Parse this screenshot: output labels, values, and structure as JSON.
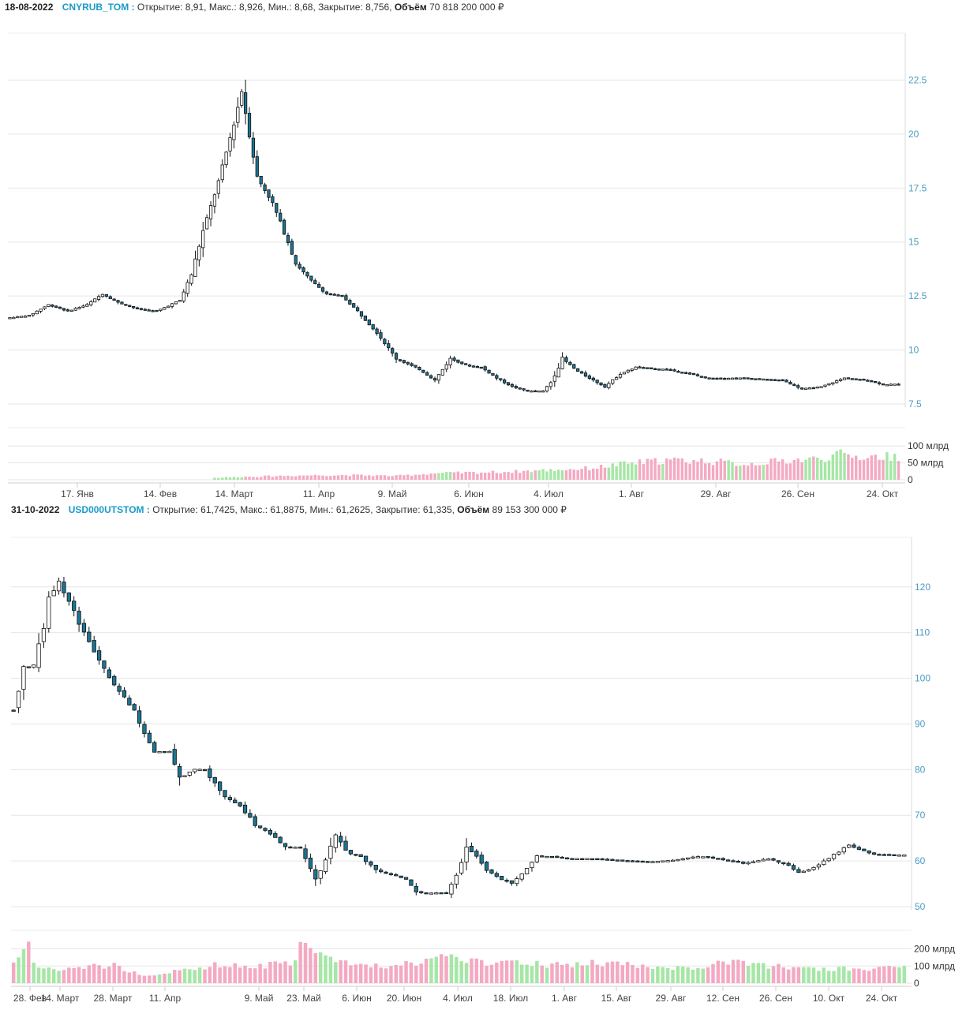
{
  "chart_data": [
    {
      "type": "candlestick",
      "ticker": "CNYRUB_TOM",
      "header": {
        "date": "18-08-2022",
        "ticker_label": "CNYRUB_TOM :",
        "open_label": "Открытие:",
        "open": "8,91",
        "high_label": "Макс.:",
        "high": "8,926",
        "low_label": "Мин.:",
        "low": "8,68",
        "close_label": "Закрытие:",
        "close": "8,756",
        "volume_label": "Объём",
        "volume": "70 818 200 000 ₽"
      },
      "y_ticks": [
        "7.5",
        "10",
        "12.5",
        "15",
        "17.5",
        "20",
        "22.5"
      ],
      "ylim": [
        7.5,
        24.6
      ],
      "volume_ticks": [
        "0",
        "50 млрд",
        "100 млрд"
      ],
      "volume_max": 150,
      "x_ticks": [
        "17. Янв",
        "14. Фев",
        "14. Март",
        "11. Апр",
        "9. Май",
        "6. Июн",
        "4. Июл",
        "1. Авг",
        "29. Авг",
        "26. Сен",
        "24. Окт"
      ],
      "key_points": [
        [
          0,
          11.5
        ],
        [
          5,
          11.6
        ],
        [
          10,
          12.1
        ],
        [
          15,
          11.8
        ],
        [
          20,
          12.1
        ],
        [
          24,
          12.6
        ],
        [
          28,
          12.2
        ],
        [
          33,
          11.9
        ],
        [
          38,
          11.8
        ],
        [
          44,
          12.3
        ],
        [
          47,
          13.5
        ],
        [
          50,
          15.5
        ],
        [
          54,
          17.8
        ],
        [
          58,
          20.5
        ],
        [
          60,
          22.0
        ],
        [
          64,
          18.0
        ],
        [
          68,
          16.8
        ],
        [
          72,
          15.0
        ],
        [
          74,
          14.0
        ],
        [
          78,
          13.2
        ],
        [
          82,
          12.6
        ],
        [
          86,
          12.5
        ],
        [
          90,
          11.8
        ],
        [
          95,
          10.8
        ],
        [
          100,
          9.6
        ],
        [
          106,
          9.1
        ],
        [
          110,
          8.6
        ],
        [
          114,
          9.6
        ],
        [
          118,
          9.3
        ],
        [
          122,
          9.2
        ],
        [
          126,
          8.7
        ],
        [
          130,
          8.3
        ],
        [
          134,
          8.1
        ],
        [
          138,
          8.1
        ],
        [
          140,
          8.5
        ],
        [
          143,
          9.6
        ],
        [
          147,
          9.0
        ],
        [
          151,
          8.6
        ],
        [
          154,
          8.3
        ],
        [
          158,
          8.9
        ],
        [
          162,
          9.2
        ],
        [
          170,
          9.1
        ],
        [
          176,
          8.9
        ],
        [
          180,
          8.7
        ],
        [
          190,
          8.7
        ],
        [
          200,
          8.6
        ],
        [
          205,
          8.2
        ],
        [
          210,
          8.3
        ],
        [
          216,
          8.7
        ],
        [
          222,
          8.6
        ],
        [
          226,
          8.4
        ],
        [
          230,
          8.42
        ]
      ],
      "volume_points": [
        [
          0,
          0
        ],
        [
          52,
          0
        ],
        [
          53,
          6
        ],
        [
          60,
          9
        ],
        [
          70,
          12
        ],
        [
          80,
          14
        ],
        [
          90,
          14
        ],
        [
          100,
          12
        ],
        [
          110,
          20
        ],
        [
          120,
          22
        ],
        [
          130,
          25
        ],
        [
          140,
          30
        ],
        [
          150,
          35
        ],
        [
          160,
          50
        ],
        [
          170,
          60
        ],
        [
          180,
          58
        ],
        [
          190,
          48
        ],
        [
          200,
          58
        ],
        [
          210,
          65
        ],
        [
          215,
          78
        ],
        [
          220,
          70
        ],
        [
          230,
          72
        ]
      ],
      "colors": {
        "up": "#ffffff",
        "down": "#1c7494",
        "vol_up": "#a6e6a6",
        "vol_down": "#f4a9c3",
        "axis_text": "#4a9cc4",
        "grid": "#e6e6e6"
      }
    },
    {
      "type": "candlestick",
      "ticker": "USD000UTSTOM",
      "header": {
        "date": "31-10-2022",
        "ticker_label": "USD000UTSTOM :",
        "open_label": "Открытие:",
        "open": "61,7425",
        "high_label": "Макс.:",
        "high": "61,8875",
        "low_label": "Мин.:",
        "low": "61,2625",
        "close_label": "Закрытие:",
        "close": "61,335",
        "volume_label": "Объём",
        "volume": "89 153 300 000 ₽"
      },
      "y_ticks": [
        "50",
        "60",
        "70",
        "80",
        "90",
        "100",
        "110",
        "120"
      ],
      "ylim": [
        50,
        130.5
      ],
      "volume_ticks": [
        "0",
        "100 млрд",
        "200 млрд"
      ],
      "volume_max": 285,
      "x_ticks": [
        "28. Фев",
        "14. Март",
        "28. Март",
        "11. Апр",
        "9. Май",
        "23. Май",
        "6. Июн",
        "20. Июн",
        "4. Июл",
        "18. Июл",
        "1. Авг",
        "15. Авг",
        "29. Авг",
        "12. Сен",
        "26. Сен",
        "10. Окт",
        "24. Окт"
      ],
      "key_points": [
        [
          0,
          93
        ],
        [
          2,
          102
        ],
        [
          4,
          103
        ],
        [
          6,
          111
        ],
        [
          7,
          118
        ],
        [
          9,
          121
        ],
        [
          11,
          117
        ],
        [
          13,
          112
        ],
        [
          15,
          108
        ],
        [
          17,
          104
        ],
        [
          19,
          100
        ],
        [
          21,
          97
        ],
        [
          24,
          93
        ],
        [
          26,
          88
        ],
        [
          28,
          84
        ],
        [
          31,
          84
        ],
        [
          33,
          78
        ],
        [
          36,
          80
        ],
        [
          38,
          80
        ],
        [
          40,
          77
        ],
        [
          42,
          74
        ],
        [
          45,
          72
        ],
        [
          48,
          68
        ],
        [
          51,
          66
        ],
        [
          54,
          63
        ],
        [
          57,
          63
        ],
        [
          60,
          56
        ],
        [
          62,
          60
        ],
        [
          64,
          66
        ],
        [
          66,
          62
        ],
        [
          69,
          61
        ],
        [
          72,
          58
        ],
        [
          75,
          57
        ],
        [
          78,
          56
        ],
        [
          80,
          53
        ],
        [
          83,
          53
        ],
        [
          86,
          53
        ],
        [
          88,
          57
        ],
        [
          90,
          63
        ],
        [
          92,
          61
        ],
        [
          94,
          58
        ],
        [
          97,
          56
        ],
        [
          99,
          55
        ],
        [
          101,
          57
        ],
        [
          104,
          61
        ],
        [
          107,
          61
        ],
        [
          110,
          60.5
        ],
        [
          115,
          60.5
        ],
        [
          120,
          60.2
        ],
        [
          126,
          59.8
        ],
        [
          132,
          60.3
        ],
        [
          136,
          61
        ],
        [
          140,
          60.5
        ],
        [
          145,
          59.5
        ],
        [
          150,
          60.5
        ],
        [
          154,
          59
        ],
        [
          156,
          57.5
        ],
        [
          159,
          58.5
        ],
        [
          161,
          60
        ],
        [
          164,
          62
        ],
        [
          166,
          63.5
        ],
        [
          168,
          62.5
        ],
        [
          171,
          61.5
        ],
        [
          175,
          61.3
        ],
        [
          177,
          61.3
        ]
      ],
      "volume_points": [
        [
          0,
          140
        ],
        [
          3,
          200
        ],
        [
          5,
          80
        ],
        [
          10,
          90
        ],
        [
          20,
          100
        ],
        [
          27,
          40
        ],
        [
          35,
          90
        ],
        [
          40,
          100
        ],
        [
          45,
          95
        ],
        [
          50,
          100
        ],
        [
          55,
          110
        ],
        [
          57,
          200
        ],
        [
          59,
          210
        ],
        [
          61,
          170
        ],
        [
          64,
          110
        ],
        [
          70,
          110
        ],
        [
          75,
          100
        ],
        [
          80,
          110
        ],
        [
          85,
          150
        ],
        [
          90,
          125
        ],
        [
          95,
          110
        ],
        [
          100,
          120
        ],
        [
          105,
          110
        ],
        [
          110,
          100
        ],
        [
          115,
          120
        ],
        [
          120,
          110
        ],
        [
          125,
          95
        ],
        [
          130,
          95
        ],
        [
          135,
          85
        ],
        [
          140,
          110
        ],
        [
          145,
          120
        ],
        [
          150,
          100
        ],
        [
          155,
          90
        ],
        [
          160,
          75
        ],
        [
          165,
          90
        ],
        [
          170,
          85
        ],
        [
          177,
          85
        ]
      ],
      "colors": {
        "up": "#ffffff",
        "down": "#1c7494",
        "vol_up": "#a6e6a6",
        "vol_down": "#f4a9c3",
        "axis_text": "#4a9cc4",
        "grid": "#e6e6e6"
      }
    }
  ]
}
